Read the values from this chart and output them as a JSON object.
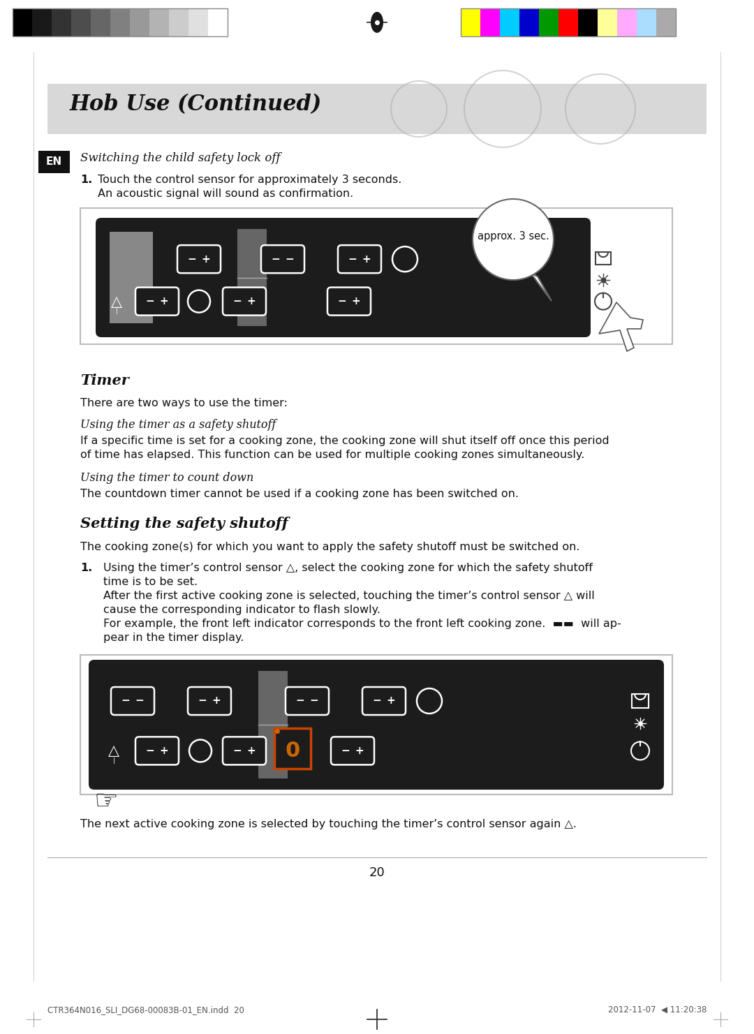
{
  "page_title": "Hob Use (Continued)",
  "header_bg": "#d9d9d9",
  "page_bg": "#ffffff",
  "section1_italic_heading": "Switching the child safety lock off",
  "section1_step1_line1": "1. Touch the control sensor for approximately 3 seconds.",
  "section1_step1_line2": "    An acoustic signal will sound as confirmation.",
  "timer_heading": "Timer",
  "timer_intro": "There are two ways to use the timer:",
  "subsection1_italic": "Using the timer as a safety shutoff",
  "subsection1_text_line1": "If a specific time is set for a cooking zone, the cooking zone will shut itself off once this period",
  "subsection1_text_line2": "of time has elapsed. This function can be used for multiple cooking zones simultaneously.",
  "subsection2_italic": "Using the timer to count down",
  "subsection2_text": "The countdown timer cannot be used if a cooking zone has been switched on.",
  "section2_heading": "Setting the safety shutoff",
  "section2_intro": "The cooking zone(s) for which you want to apply the safety shutoff must be switched on.",
  "section2_step1_line1": "1.  Using the timer’s control sensor △, select the cooking zone for which the safety shutoff",
  "section2_step1_line2": "     time is to be set.",
  "section2_step1_line3": "     After the first active cooking zone is selected, touching the timer’s control sensor △ will",
  "section2_step1_line4": "     cause the corresponding indicator to flash slowly.",
  "section2_step1_line5": "     For example, the front left indicator corresponds to the front left cooking zone.  ▬▬  will ap-",
  "section2_step1_line6": "     pear in the timer display.",
  "footer_text": "The next active cooking zone is selected by touching the timer’s control sensor again △.",
  "page_number": "20",
  "footer_file": "CTR364N016_SLI_DG68-00083B-01_EN.indd  20",
  "footer_date": "2012-11-07  ◀ 11:20:38",
  "diagram1_approx_text": "approx. 3 sec.",
  "grayscale_colors": [
    "#000000",
    "#191919",
    "#333333",
    "#4d4d4d",
    "#666666",
    "#808080",
    "#999999",
    "#b3b3b3",
    "#cccccc",
    "#e0e0e0",
    "#ffffff"
  ],
  "color_colors": [
    "#ffff00",
    "#ff00ff",
    "#00ccff",
    "#0000cc",
    "#009900",
    "#ff0000",
    "#000000",
    "#ffff99",
    "#ffaaff",
    "#aaddff",
    "#aaaaaa"
  ]
}
